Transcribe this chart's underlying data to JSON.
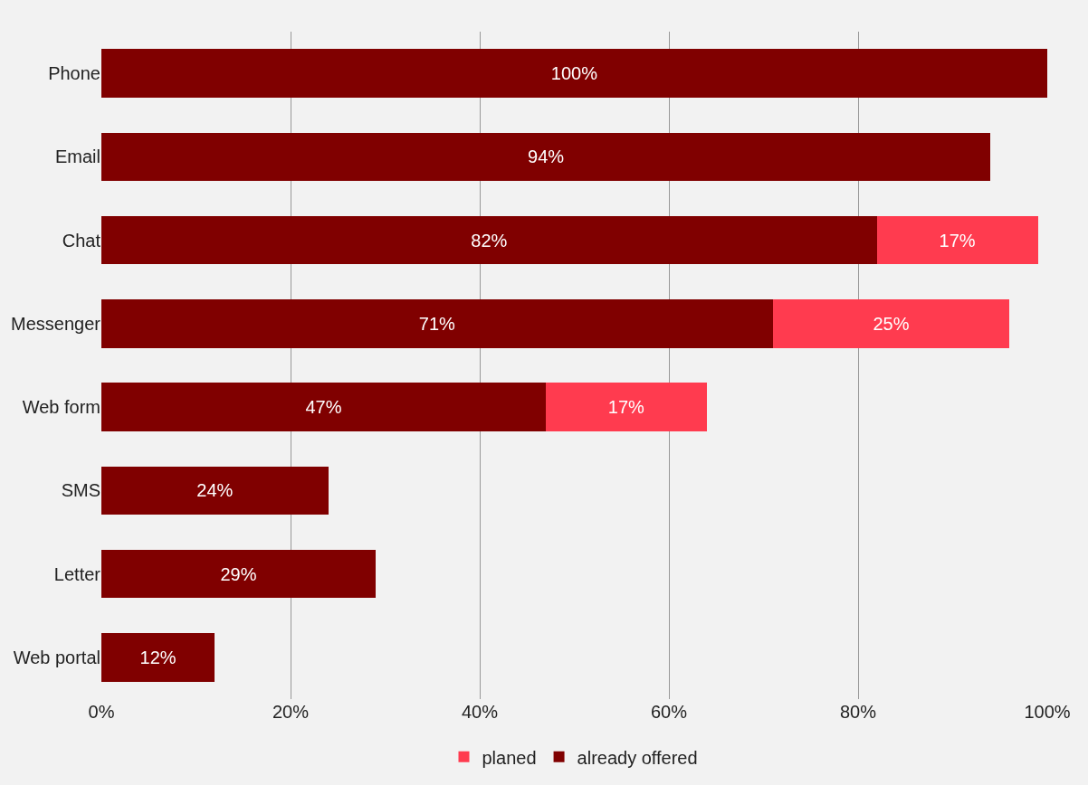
{
  "chart_data": {
    "type": "bar",
    "orientation": "horizontal",
    "stacked": true,
    "categories": [
      "Phone",
      "Email",
      "Chat",
      "Messenger",
      "Web form",
      "SMS",
      "Letter",
      "Web portal"
    ],
    "series": [
      {
        "name": "already offered",
        "color": "#800000",
        "values": [
          100,
          94,
          82,
          71,
          47,
          24,
          29,
          12
        ],
        "value_labels": [
          "100%",
          "94%",
          "82%",
          "71%",
          "47%",
          "24%",
          "29%",
          "12%"
        ]
      },
      {
        "name": "planed",
        "color": "#ff3b4f",
        "values": [
          null,
          null,
          17,
          25,
          17,
          null,
          null,
          null
        ],
        "value_labels": [
          null,
          null,
          "17%",
          "25%",
          "17%",
          null,
          null,
          null
        ]
      }
    ],
    "xlim": [
      0,
      100
    ],
    "xticks": [
      {
        "value": 0,
        "label": "0%"
      },
      {
        "value": 20,
        "label": "20%"
      },
      {
        "value": 40,
        "label": "40%"
      },
      {
        "value": 60,
        "label": "60%"
      },
      {
        "value": 80,
        "label": "80%"
      },
      {
        "value": 100,
        "label": "100%"
      }
    ],
    "grid": "x",
    "legend": "bottom"
  }
}
